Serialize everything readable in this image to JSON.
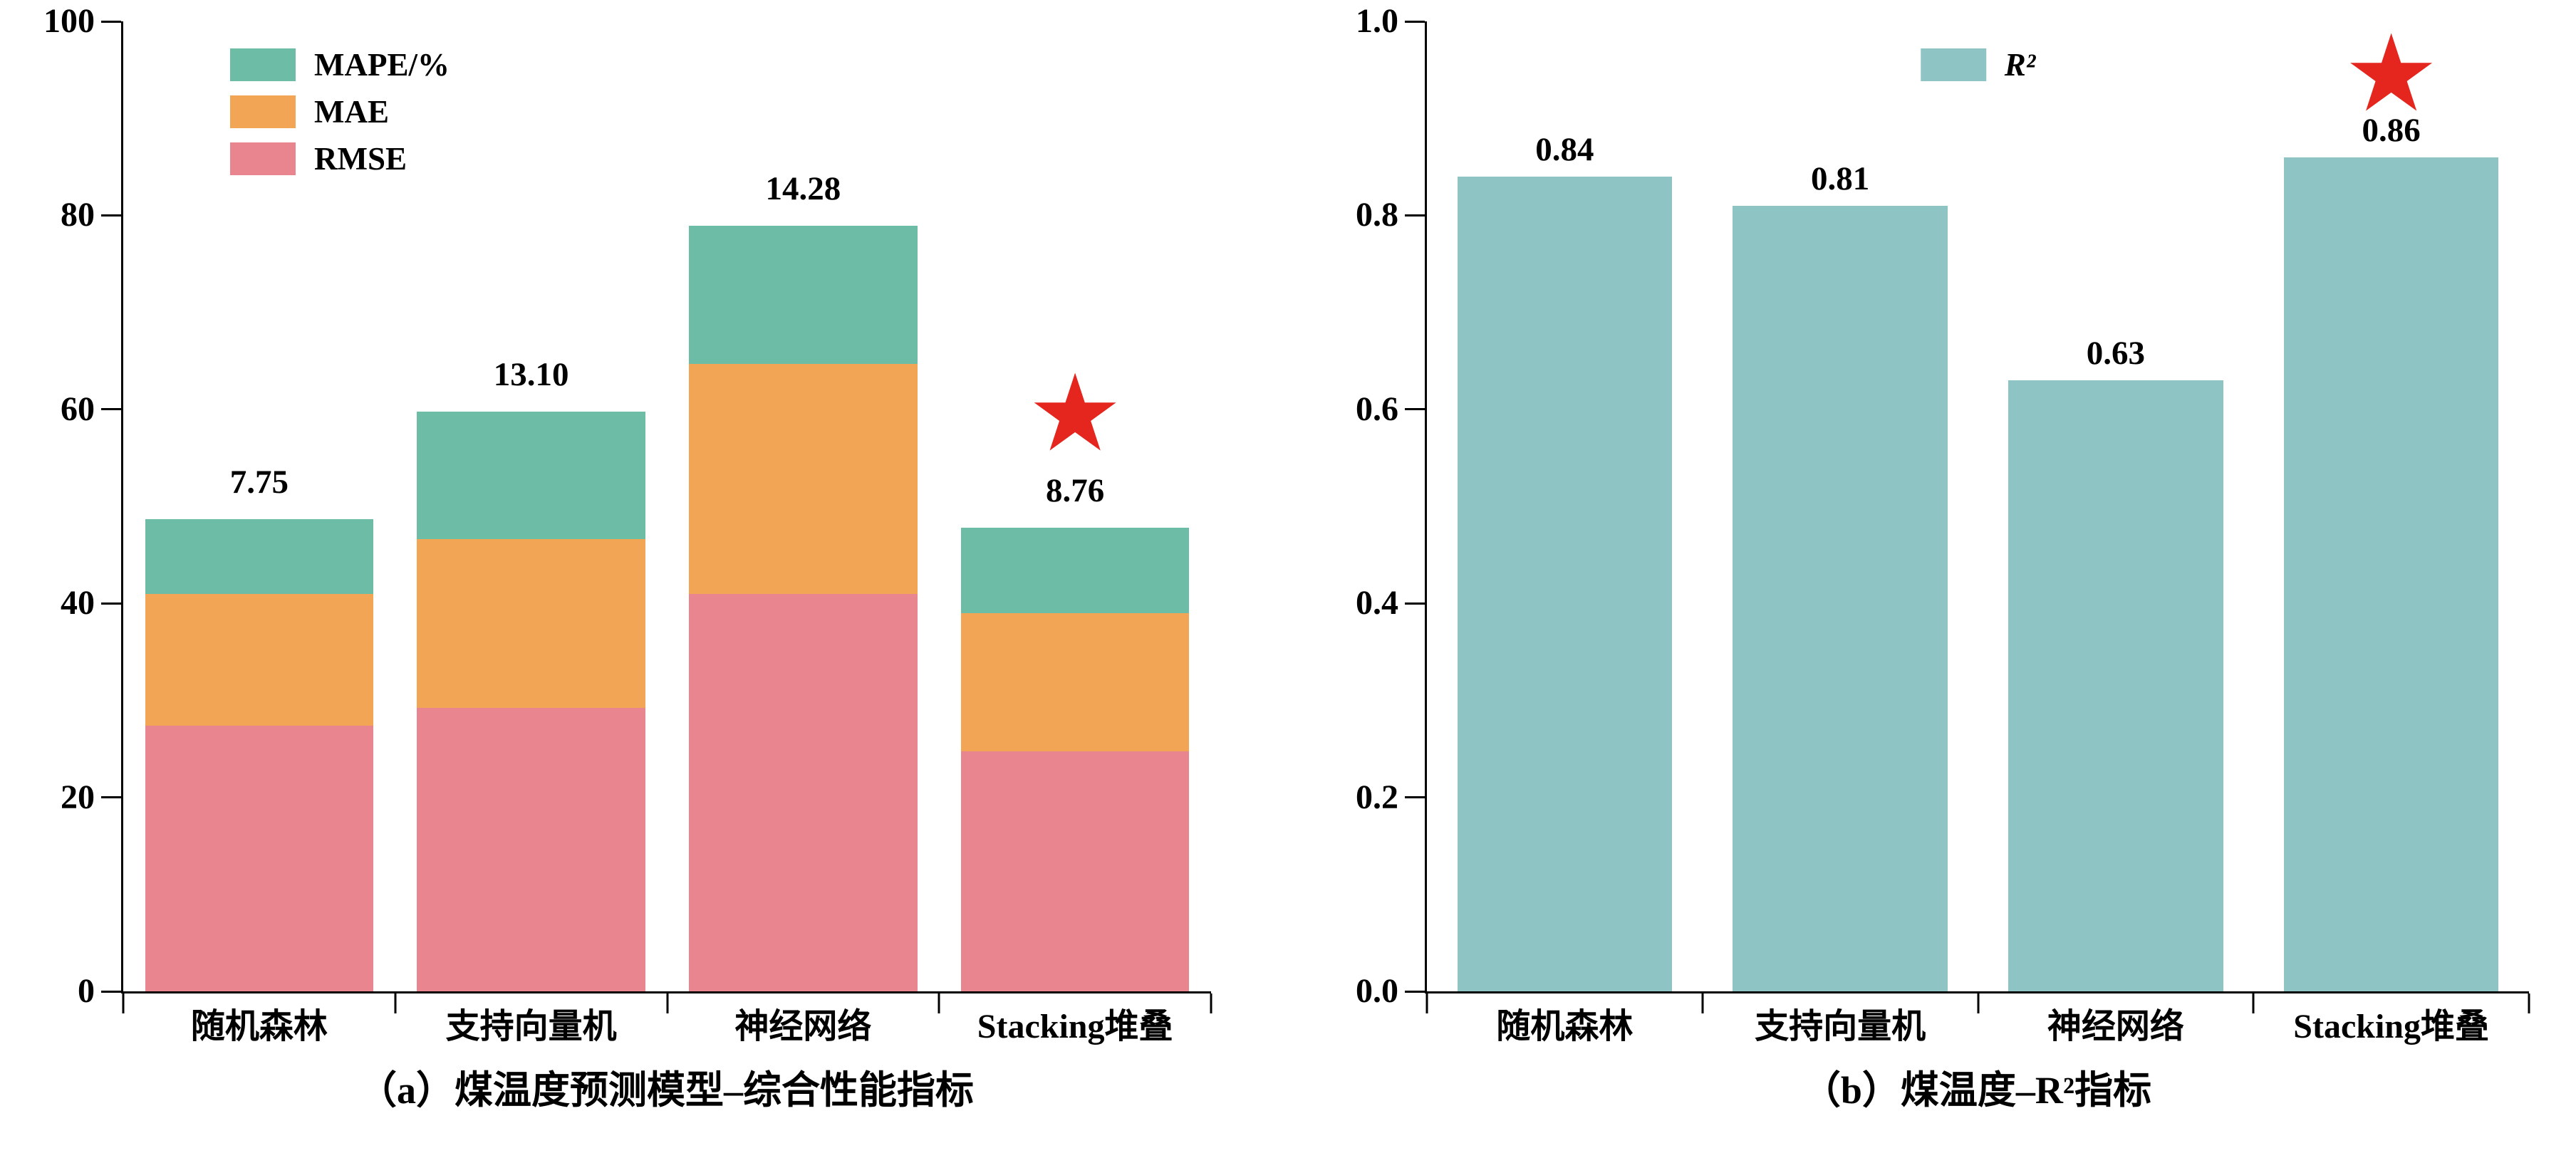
{
  "star_glyph": "★",
  "chart_data": [
    {
      "id": "a",
      "type": "bar",
      "stacked": true,
      "title": "（a）煤温度预测模型–综合性能指标",
      "categories": [
        "随机森林",
        "支持向量机",
        "神经网络",
        "Stacking堆叠"
      ],
      "series": [
        {
          "name": "RMSE",
          "color": "#e8858e",
          "values": [
            27.37,
            29.22,
            40.95,
            24.71
          ],
          "labels": [
            "27.37",
            "29.22",
            "40.95",
            "24.71"
          ]
        },
        {
          "name": "MAE",
          "color": "#f2a554",
          "values": [
            13.59,
            17.42,
            23.71,
            14.3
          ],
          "labels": [
            "13.59",
            "17.42",
            "23.71",
            "14.30"
          ]
        },
        {
          "name": "MAPE/%",
          "color": "#6dbda6",
          "values": [
            7.75,
            13.1,
            14.28,
            8.76
          ],
          "labels": [
            "7.75",
            "13.10",
            "14.28",
            "8.76"
          ]
        }
      ],
      "legend_order": [
        "MAPE/%",
        "MAE",
        "RMSE"
      ],
      "ylim": [
        0,
        100
      ],
      "yticks": [
        "0",
        "20",
        "40",
        "60",
        "80",
        "100"
      ],
      "grid": false,
      "legend_position": "upper-left-inside",
      "bar_width_frac": 0.84,
      "value_label_offset": 28,
      "star": {
        "category_index": 3,
        "value": 54,
        "color": "#e5261f"
      }
    },
    {
      "id": "b",
      "type": "bar",
      "stacked": false,
      "title": "（b）煤温度–R²指标",
      "categories": [
        "随机森林",
        "支持向量机",
        "神经网络",
        "Stacking堆叠"
      ],
      "series": [
        {
          "name": "R²",
          "color": "#8ec5c4",
          "values": [
            0.84,
            0.81,
            0.63,
            0.86
          ],
          "labels": [
            "0.84",
            "0.81",
            "0.63",
            "0.86"
          ]
        }
      ],
      "legend_order": [
        "R²"
      ],
      "ylim": [
        0,
        1.0
      ],
      "yticks": [
        "0.0",
        "0.2",
        "0.4",
        "0.6",
        "0.8",
        "1.0"
      ],
      "grid": false,
      "legend_position": "upper-center-inside",
      "bar_width_frac": 0.78,
      "value_label_offset": 14,
      "star": {
        "category_index": 3,
        "value": 0.89,
        "color": "#e5261f"
      }
    }
  ]
}
